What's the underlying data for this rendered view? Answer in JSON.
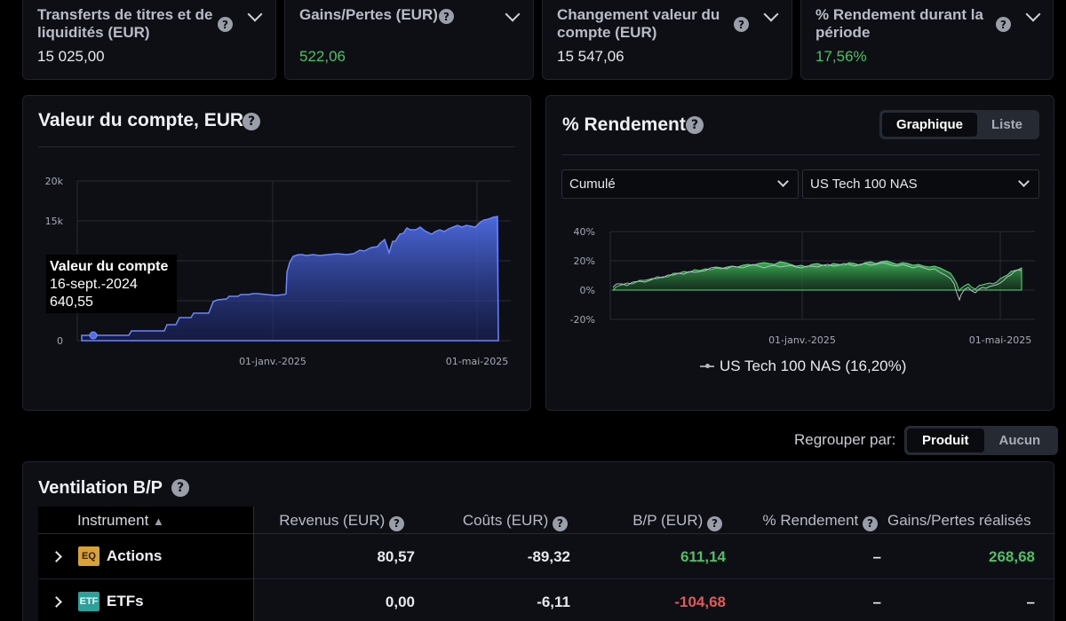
{
  "stats": [
    {
      "label": "Transferts de titres et de liquidités (EUR)",
      "value": "15 025,00",
      "positive": false
    },
    {
      "label": "Gains/Pertes (EUR)",
      "value": "522,06",
      "positive": true
    },
    {
      "label": "Changement valeur du compte (EUR)",
      "value": "15 547,06",
      "positive": false
    },
    {
      "label": "% Rendement durant la période",
      "value": "17,56%",
      "positive": true
    }
  ],
  "account_value": {
    "title": "Valeur du compte, EUR",
    "y_ticks": [
      "20k",
      "15k",
      "10k",
      "5k",
      "0"
    ],
    "x_ticks": [
      "01-janv.-2025",
      "01-mai-2025"
    ],
    "tooltip": {
      "title": "Valeur du compte",
      "date": "16-sept.-2024",
      "value": "640,55"
    }
  },
  "returns": {
    "title": "% Rendement",
    "view_options": [
      "Graphique",
      "Liste"
    ],
    "active_view": "Graphique",
    "mode_select": "Cumulé",
    "benchmark_select": "US Tech 100 NAS",
    "y_ticks": [
      "40%",
      "20%",
      "0%",
      "-20%"
    ],
    "x_ticks": [
      "01-janv.-2025",
      "01-mai-2025"
    ],
    "legend": "US Tech 100 NAS (16,20%)"
  },
  "grouping": {
    "label": "Regrouper par:",
    "options": [
      "Produit",
      "Aucun"
    ],
    "active": "Produit"
  },
  "breakdown": {
    "title": "Ventilation B/P",
    "columns": [
      "Instrument",
      "Revenus (EUR)",
      "Coûts (EUR)",
      "B/P (EUR)",
      "% Rendement",
      "Gains/Pertes réalisés"
    ],
    "rows": [
      {
        "badge": "EQ",
        "name": "Actions",
        "revenue": "80,57",
        "costs": "-89,32",
        "pl": "611,14",
        "return": "–",
        "realized": "268,68"
      },
      {
        "badge": "ETF",
        "name": "ETFs",
        "revenue": "0,00",
        "costs": "-6,11",
        "pl": "-104,68",
        "return": "–",
        "realized": "–"
      }
    ]
  },
  "colors": {
    "accent_blue": "#4f6ee8",
    "positive": "#4fbf67",
    "negative": "#e05a5a",
    "badge_eq": "#d8a23a",
    "badge_etf": "#2aa19b"
  },
  "chart_data": [
    {
      "type": "area",
      "title": "Valeur du compte, EUR",
      "xlabel": "",
      "ylabel": "",
      "ylim": [
        0,
        20000
      ],
      "x": [
        "2024-09",
        "2024-10",
        "2024-11",
        "2024-12",
        "2025-01",
        "2025-02",
        "2025-03",
        "2025-04",
        "2025-05"
      ],
      "series": [
        {
          "values": [
            640,
            1200,
            3500,
            5700,
            5500,
            10500,
            11500,
            13500,
            15547
          ]
        }
      ],
      "grid": true
    },
    {
      "type": "area",
      "title": "% Rendement",
      "xlabel": "",
      "ylabel": "",
      "ylim": [
        -20,
        40
      ],
      "x": [
        "2024-09",
        "2024-10",
        "2024-11",
        "2024-12",
        "2025-01",
        "2025-02",
        "2025-03",
        "2025-04",
        "2025-05"
      ],
      "series": [
        {
          "values": [
            2,
            8,
            14,
            18,
            16,
            19,
            17,
            -3,
            17.56
          ]
        },
        {
          "name": "US Tech 100 NAS (16,20%)",
          "values": [
            2,
            6,
            12,
            15,
            14,
            17,
            16,
            -5,
            16.2
          ]
        }
      ],
      "grid": true
    }
  ]
}
